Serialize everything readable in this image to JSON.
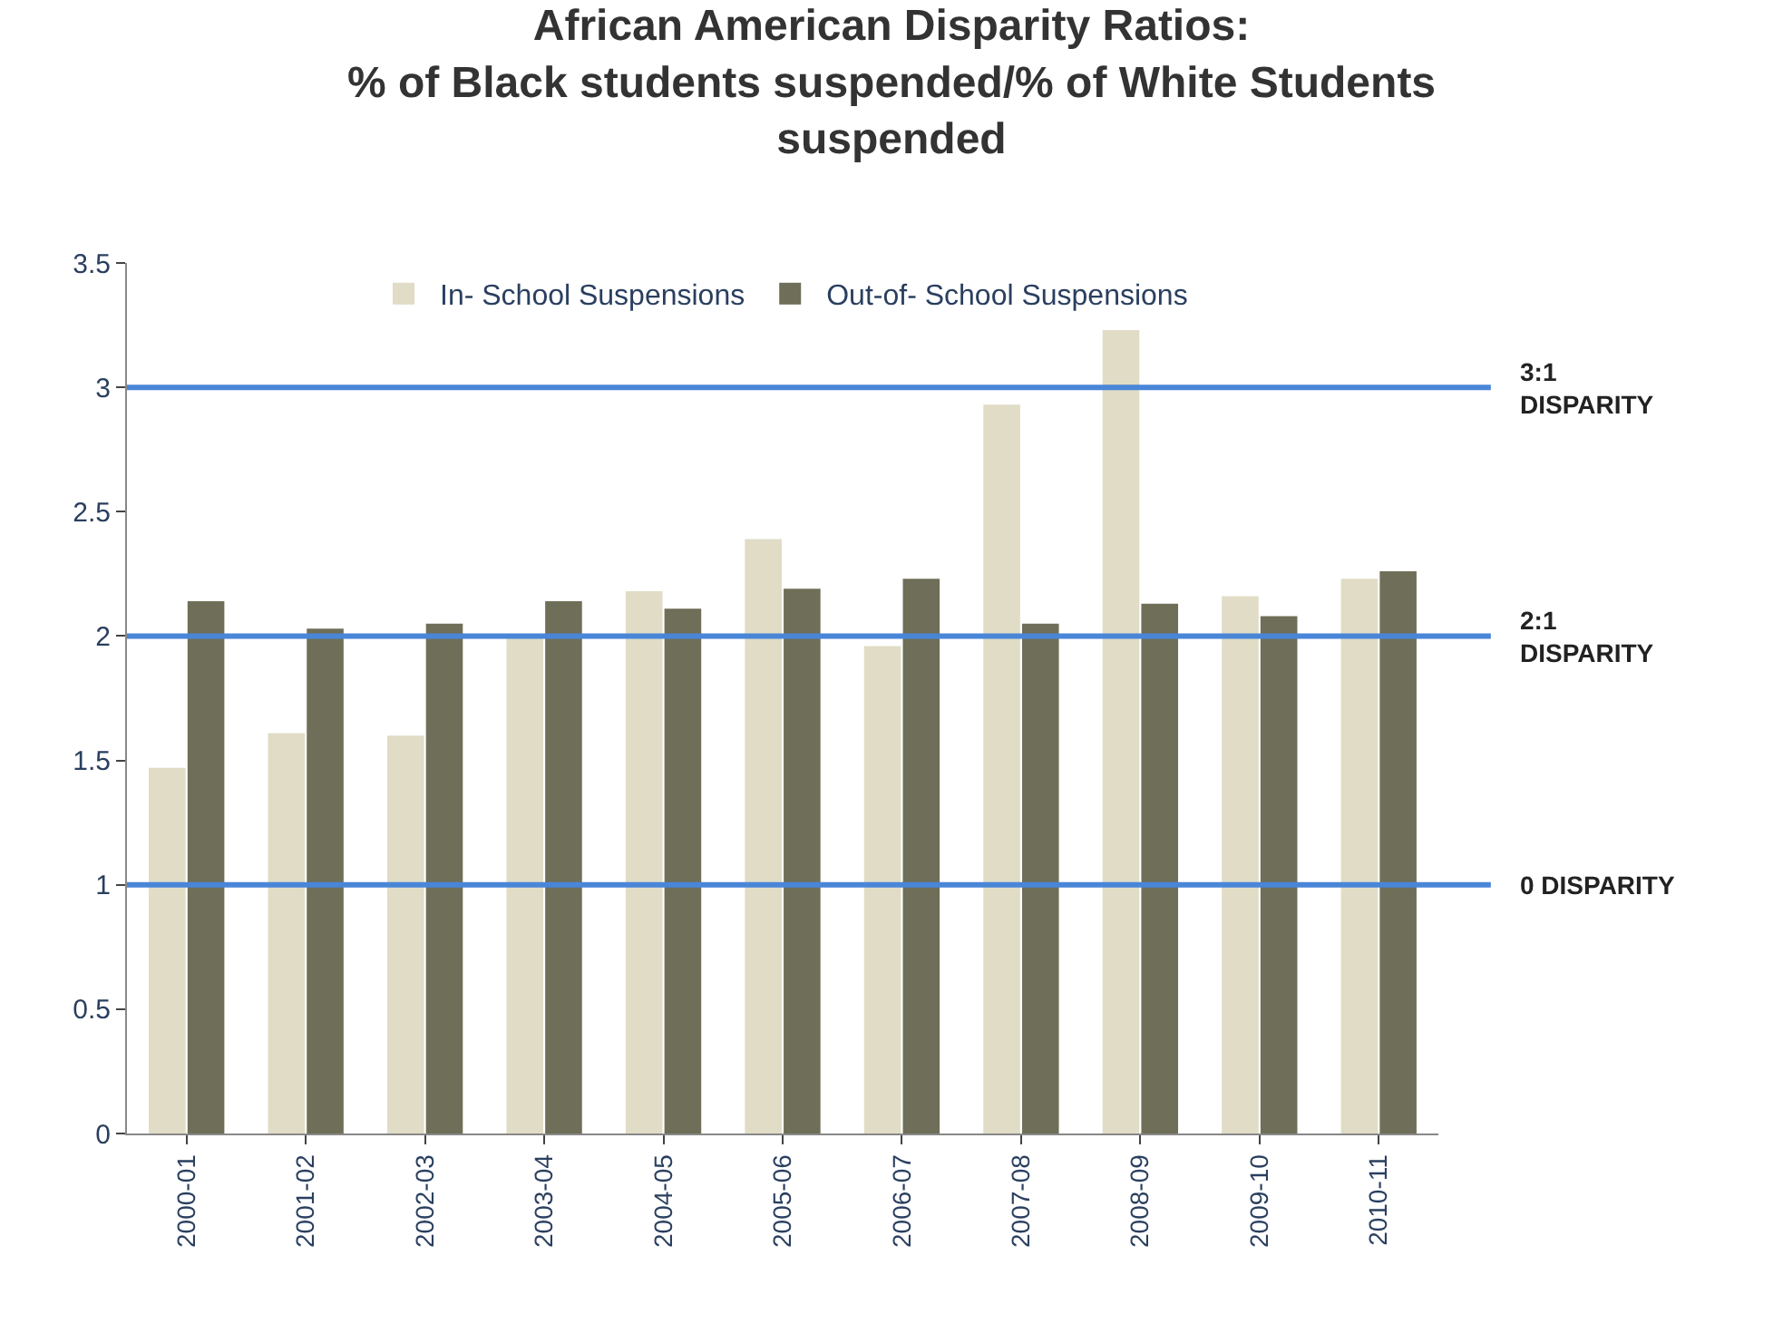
{
  "chart_data": {
    "type": "bar",
    "title": "African American Disparity Ratios:\n% of Black students suspended/% of White Students\nsuspended",
    "categories": [
      "2000-01",
      "2001-02",
      "2002-03",
      "2003-04",
      "2004-05",
      "2005-06",
      "2006-07",
      "2007-08",
      "2008-09",
      "2009-10",
      "2010-11"
    ],
    "series": [
      {
        "name": "In- School Suspensions",
        "color": "#e0dcc6",
        "values": [
          1.47,
          1.61,
          1.6,
          2.0,
          2.18,
          2.39,
          1.96,
          2.93,
          3.23,
          2.16,
          2.23
        ]
      },
      {
        "name": "Out-of- School Suspensions",
        "color": "#6f6e58",
        "values": [
          2.14,
          2.03,
          2.05,
          2.14,
          2.11,
          2.19,
          2.23,
          2.05,
          2.13,
          2.08,
          2.26
        ]
      }
    ],
    "ylim": [
      0,
      3.5
    ],
    "yticks": [
      0,
      0.5,
      1,
      1.5,
      2,
      2.5,
      3,
      3.5
    ],
    "ref_lines": [
      {
        "axis": "y",
        "value": 3,
        "label": "3:1\nDISPARITY",
        "color": "#4a86d8"
      },
      {
        "axis": "y",
        "value": 2,
        "label": "2:1\nDISPARITY",
        "color": "#4a86d8"
      },
      {
        "axis": "y",
        "value": 1,
        "label": "0 DISPARITY",
        "color": "#4a86d8"
      }
    ],
    "legend": "top"
  }
}
